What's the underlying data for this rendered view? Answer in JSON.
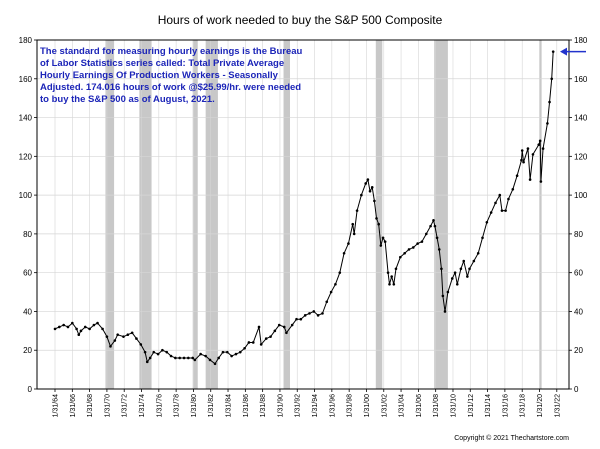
{
  "chart_data": {
    "type": "line",
    "title": "Hours of work needed to buy the S&P 500 Composite",
    "xlabel": "",
    "ylabel": "",
    "ylim": [
      0,
      180
    ],
    "xlim": [
      "1962-01-01",
      "2023-06-30"
    ],
    "y_ticks": [
      0,
      20,
      40,
      60,
      80,
      100,
      120,
      140,
      160,
      180
    ],
    "x_tick_labels": [
      "1/31/64",
      "1/31/66",
      "1/31/68",
      "1/31/70",
      "1/31/72",
      "1/31/74",
      "1/31/76",
      "1/31/78",
      "1/31/80",
      "1/31/82",
      "1/31/84",
      "1/31/86",
      "1/31/88",
      "1/31/90",
      "1/31/92",
      "1/31/94",
      "1/31/96",
      "1/31/98",
      "1/31/00",
      "1/31/02",
      "1/31/04",
      "1/31/06",
      "1/31/08",
      "1/31/10",
      "1/31/12",
      "1/31/14",
      "1/31/16",
      "1/31/18",
      "1/31/20",
      "1/31/22"
    ],
    "x_tick_dates": [
      "1964-01-31",
      "1966-01-31",
      "1968-01-31",
      "1970-01-31",
      "1972-01-31",
      "1974-01-31",
      "1976-01-31",
      "1978-01-31",
      "1980-01-31",
      "1982-01-31",
      "1984-01-31",
      "1986-01-31",
      "1988-01-31",
      "1990-01-31",
      "1992-01-31",
      "1994-01-31",
      "1996-01-31",
      "1998-01-31",
      "2000-01-31",
      "2002-01-31",
      "2004-01-31",
      "2006-01-31",
      "2008-01-31",
      "2010-01-31",
      "2012-01-31",
      "2014-01-31",
      "2016-01-31",
      "2018-01-31",
      "2020-01-31",
      "2022-01-31"
    ],
    "grid": true,
    "recessions": [
      [
        "1969-12-01",
        "1970-11-30"
      ],
      [
        "1973-11-01",
        "1975-03-31"
      ],
      [
        "1980-01-01",
        "1980-07-31"
      ],
      [
        "1981-07-01",
        "1982-11-30"
      ],
      [
        "1990-07-01",
        "1991-03-31"
      ],
      [
        "2001-03-01",
        "2001-11-30"
      ],
      [
        "2007-12-01",
        "2009-06-30"
      ],
      [
        "2020-02-01",
        "2020-04-30"
      ]
    ],
    "series": [
      {
        "color": "#000000",
        "points": [
          [
            "1964-01-31",
            31
          ],
          [
            "1964-07-31",
            32
          ],
          [
            "1965-01-31",
            33
          ],
          [
            "1965-07-31",
            32
          ],
          [
            "1966-01-31",
            34
          ],
          [
            "1966-07-31",
            31
          ],
          [
            "1966-10-31",
            28
          ],
          [
            "1967-01-31",
            30
          ],
          [
            "1967-07-31",
            32
          ],
          [
            "1968-01-31",
            31
          ],
          [
            "1968-07-31",
            33
          ],
          [
            "1968-12-31",
            34
          ],
          [
            "1969-07-31",
            31
          ],
          [
            "1970-01-31",
            27
          ],
          [
            "1970-06-30",
            22
          ],
          [
            "1970-12-31",
            25
          ],
          [
            "1971-04-30",
            28
          ],
          [
            "1971-12-31",
            27
          ],
          [
            "1972-06-30",
            28
          ],
          [
            "1972-12-31",
            29
          ],
          [
            "1973-06-30",
            26
          ],
          [
            "1973-12-31",
            23
          ],
          [
            "1974-06-30",
            19
          ],
          [
            "1974-09-30",
            14
          ],
          [
            "1975-01-31",
            16
          ],
          [
            "1975-06-30",
            19
          ],
          [
            "1975-12-31",
            18
          ],
          [
            "1976-06-30",
            20
          ],
          [
            "1976-12-31",
            19
          ],
          [
            "1977-06-30",
            17
          ],
          [
            "1977-12-31",
            16
          ],
          [
            "1978-06-30",
            16
          ],
          [
            "1978-12-31",
            16
          ],
          [
            "1979-06-30",
            16
          ],
          [
            "1979-12-31",
            16
          ],
          [
            "1980-03-31",
            15
          ],
          [
            "1980-11-30",
            18
          ],
          [
            "1981-06-30",
            17
          ],
          [
            "1981-12-31",
            15
          ],
          [
            "1982-07-31",
            13
          ],
          [
            "1982-12-31",
            16
          ],
          [
            "1983-06-30",
            19
          ],
          [
            "1983-12-31",
            19
          ],
          [
            "1984-06-30",
            17
          ],
          [
            "1984-12-31",
            18
          ],
          [
            "1985-06-30",
            19
          ],
          [
            "1985-12-31",
            21
          ],
          [
            "1986-06-30",
            24
          ],
          [
            "1986-12-31",
            24
          ],
          [
            "1987-08-31",
            32
          ],
          [
            "1987-11-30",
            23
          ],
          [
            "1988-06-30",
            26
          ],
          [
            "1988-12-31",
            27
          ],
          [
            "1989-06-30",
            30
          ],
          [
            "1989-12-31",
            33
          ],
          [
            "1990-07-31",
            32
          ],
          [
            "1990-10-31",
            29
          ],
          [
            "1991-06-30",
            33
          ],
          [
            "1991-12-31",
            36
          ],
          [
            "1992-06-30",
            36
          ],
          [
            "1992-12-31",
            38
          ],
          [
            "1993-06-30",
            39
          ],
          [
            "1993-12-31",
            40
          ],
          [
            "1994-06-30",
            38
          ],
          [
            "1994-12-31",
            39
          ],
          [
            "1995-06-30",
            45
          ],
          [
            "1995-12-31",
            50
          ],
          [
            "1996-06-30",
            54
          ],
          [
            "1996-12-31",
            60
          ],
          [
            "1997-06-30",
            70
          ],
          [
            "1997-12-31",
            75
          ],
          [
            "1998-06-30",
            85
          ],
          [
            "1998-08-31",
            80
          ],
          [
            "1998-12-31",
            92
          ],
          [
            "1999-06-30",
            100
          ],
          [
            "1999-12-31",
            106
          ],
          [
            "2000-03-31",
            108
          ],
          [
            "2000-06-30",
            102
          ],
          [
            "2000-09-30",
            104
          ],
          [
            "2000-12-31",
            97
          ],
          [
            "2001-03-31",
            88
          ],
          [
            "2001-06-30",
            85
          ],
          [
            "2001-09-30",
            74
          ],
          [
            "2001-12-31",
            78
          ],
          [
            "2002-03-31",
            76
          ],
          [
            "2002-07-31",
            60
          ],
          [
            "2002-09-30",
            54
          ],
          [
            "2002-12-31",
            58
          ],
          [
            "2003-03-31",
            54
          ],
          [
            "2003-06-30",
            62
          ],
          [
            "2003-12-31",
            68
          ],
          [
            "2004-06-30",
            70
          ],
          [
            "2004-12-31",
            72
          ],
          [
            "2005-06-30",
            73
          ],
          [
            "2005-12-31",
            75
          ],
          [
            "2006-06-30",
            76
          ],
          [
            "2006-12-31",
            80
          ],
          [
            "2007-06-30",
            84
          ],
          [
            "2007-10-31",
            87
          ],
          [
            "2007-12-31",
            84
          ],
          [
            "2008-03-31",
            78
          ],
          [
            "2008-06-30",
            72
          ],
          [
            "2008-09-30",
            62
          ],
          [
            "2008-11-30",
            48
          ],
          [
            "2009-02-28",
            40
          ],
          [
            "2009-06-30",
            50
          ],
          [
            "2009-12-31",
            57
          ],
          [
            "2010-04-30",
            60
          ],
          [
            "2010-07-31",
            54
          ],
          [
            "2010-12-31",
            62
          ],
          [
            "2011-04-30",
            66
          ],
          [
            "2011-09-30",
            58
          ],
          [
            "2011-12-31",
            62
          ],
          [
            "2012-06-30",
            66
          ],
          [
            "2012-12-31",
            70
          ],
          [
            "2013-06-30",
            78
          ],
          [
            "2013-12-31",
            86
          ],
          [
            "2014-06-30",
            91
          ],
          [
            "2014-12-31",
            96
          ],
          [
            "2015-06-30",
            100
          ],
          [
            "2015-09-30",
            92
          ],
          [
            "2016-02-29",
            92
          ],
          [
            "2016-06-30",
            98
          ],
          [
            "2016-12-31",
            103
          ],
          [
            "2017-06-30",
            110
          ],
          [
            "2017-12-31",
            118
          ],
          [
            "2018-01-31",
            123
          ],
          [
            "2018-03-31",
            117
          ],
          [
            "2018-09-30",
            124
          ],
          [
            "2018-12-31",
            108
          ],
          [
            "2019-04-30",
            121
          ],
          [
            "2019-12-31",
            126
          ],
          [
            "2020-02-29",
            128
          ],
          [
            "2020-03-31",
            107
          ],
          [
            "2020-06-30",
            124
          ],
          [
            "2020-12-31",
            137
          ],
          [
            "2021-03-31",
            148
          ],
          [
            "2021-06-30",
            160
          ],
          [
            "2021-08-31",
            174
          ]
        ]
      }
    ],
    "annotation_lines": [
      "The standard for measuring hourly earnings is the Bureau",
      "of Labor Statistics series called:  Total Private Average",
      "Hourly Earnings Of Production Workers - Seasonally",
      "Adjusted.  174.016 hours of work @$25.99/hr. were needed",
      "to buy the S&P 500 as of August, 2021."
    ],
    "copyright": "Copyright © 2021 Thechartstore.com",
    "colors": {
      "annotation_text": "#1c25b8",
      "arrow": "#2233cc",
      "recession_band": "#c8c8c8",
      "line": "#000000",
      "grid": "#d6d6d6"
    }
  }
}
